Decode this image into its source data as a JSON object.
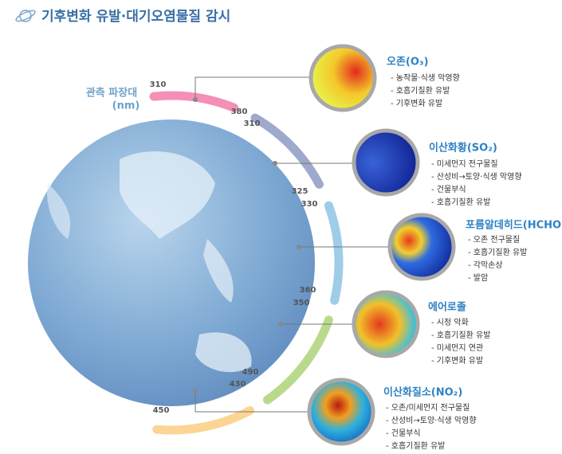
{
  "title": "기후변화 유발·대기오염물질 감시",
  "wavelength_label": {
    "line1": "관측 파장대",
    "line2": "(nm)"
  },
  "bands": [
    {
      "start": "310",
      "end": "380"
    },
    {
      "start": "310",
      "end": "325"
    },
    {
      "start": "330",
      "end": "360"
    },
    {
      "start": "350",
      "end": "490"
    },
    {
      "start": "430",
      "end": "450"
    }
  ],
  "items": [
    {
      "name": "오존(O₃)",
      "bullets": [
        "- 농작물·식생 악영향",
        "- 호흡기질환 유발",
        "- 기후변화 유발"
      ]
    },
    {
      "name": "이산화황(SO₂)",
      "bullets": [
        "- 미세먼지 전구물질",
        "- 산성비→토양·식생 악영향",
        "- 건물부식",
        "- 호흡기질환 유발"
      ]
    },
    {
      "name": "포름알데히드(HCHO)",
      "bullets": [
        "- 오존 전구물질",
        "- 호흡기질환 유발",
        "- 각막손상",
        "- 발암"
      ]
    },
    {
      "name": "에어로졸",
      "bullets": [
        "- 시정 악화",
        "- 호흡기질환 유발",
        "- 미세먼지 연관",
        "- 기후변화 유발"
      ]
    },
    {
      "name": "이산화질소(NO₂)",
      "bullets": [
        "- 오존/미세먼지 전구물질",
        "- 산성비→토양·식생 악영향",
        "- 건물부식",
        "- 호흡기질환 유발"
      ]
    }
  ]
}
